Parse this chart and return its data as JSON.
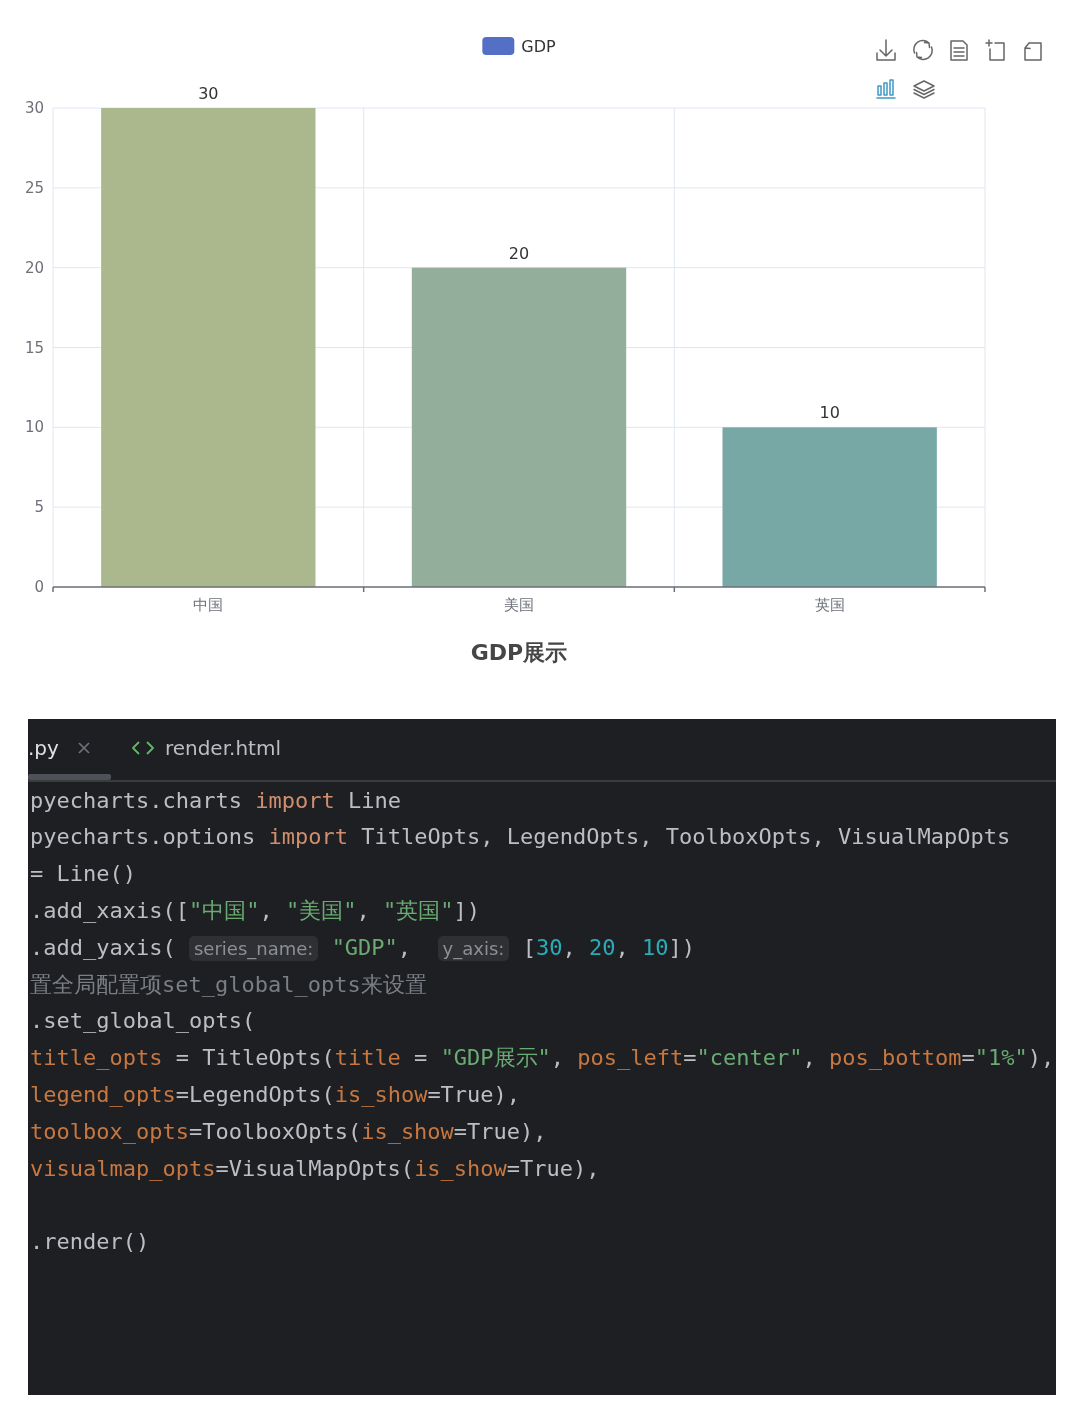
{
  "chart_data": [
    {
      "type": "bar",
      "title": "GDP展示",
      "categories": [
        "中国",
        "美国",
        "英国"
      ],
      "series": [
        {
          "name": "GDP",
          "color": "#5470c6",
          "colors": [
            "#abb78c",
            "#93ae9a",
            "#77a8a6"
          ],
          "values": [
            30,
            20,
            10
          ]
        }
      ],
      "ylim": [
        0,
        30
      ],
      "yticks": [
        0,
        5,
        10,
        15,
        20,
        25,
        30
      ],
      "grid": true,
      "legend": "top",
      "data_labels": true
    },
    {
      "type": "other",
      "annotations": [
        ".py",
        "render.html",
        "pyecharts.charts import Line\npyecharts.options import TitleOpts, LegendOpts, ToolboxOpts, VisualMapOpts\n= Line()\n.add_xaxis([\"中国\", \"美国\", \"英国\"])\n.add_yaxis( series_name: \"GDP\",  y_axis: [30, 20, 10])\n置全局配置项set_global_opts来设置\n.set_global_opts(\ntitle_opts = TitleOpts(title = \"GDP展示\", pos_left=\"center\", pos_bottom=\"1%\"),\nlegend_opts=LegendOpts(is_show=True),\ntoolbox_opts=ToolboxOpts(is_show=True),\nvisualmap_opts=VisualMapOpts(is_show=True),\n\n.render()"
      ]
    }
  ]
}
